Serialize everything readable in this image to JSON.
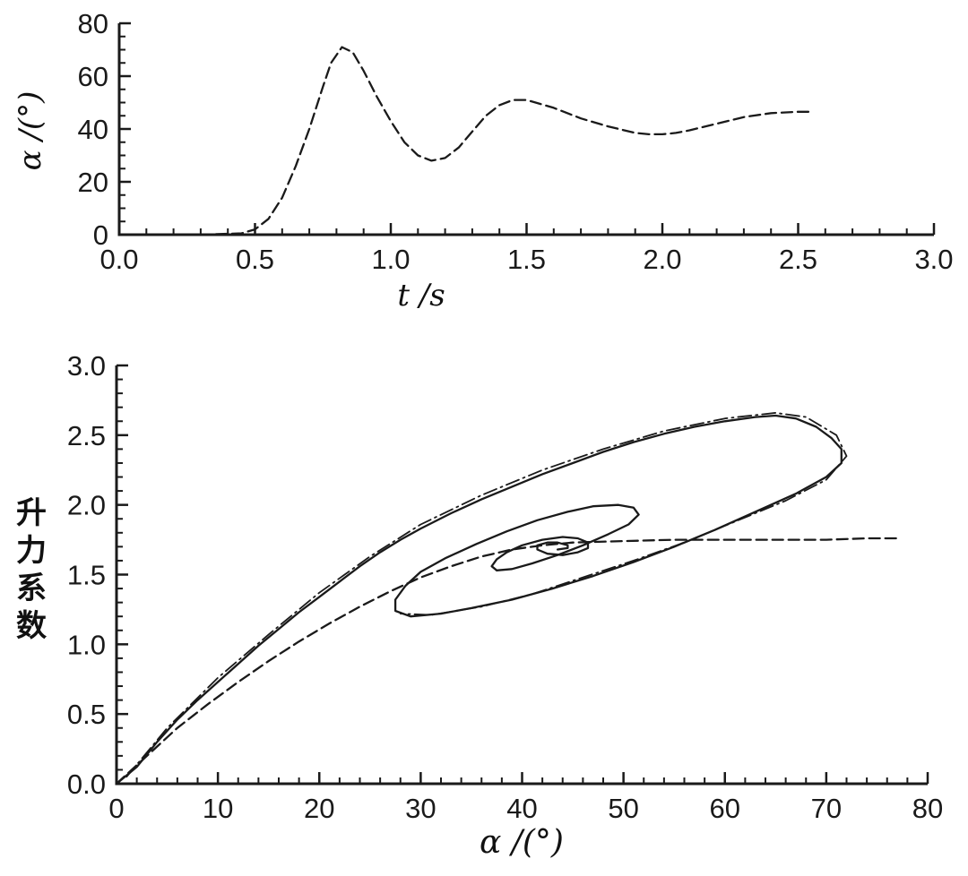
{
  "figure": {
    "background": "#ffffff",
    "ink_color": "#1a1a1a"
  },
  "chart_data": [
    {
      "id": "alpha-time-history",
      "type": "line",
      "title": "",
      "xlabel": "t /s",
      "ylabel": "α /(°)",
      "xlim": [
        0.0,
        3.0
      ],
      "ylim": [
        0,
        80
      ],
      "xtick_values": [
        0.0,
        0.5,
        1.0,
        1.5,
        2.0,
        2.5,
        3.0
      ],
      "xtick_labels": [
        "0.0",
        "0.5",
        "1.0",
        "1.5",
        "2.0",
        "2.5",
        "3.0"
      ],
      "ytick_values": [
        0,
        20,
        40,
        60,
        80
      ],
      "ytick_labels": [
        "0",
        "20",
        "40",
        "60",
        "80"
      ],
      "x_minor_step": 0.1,
      "y_minor_step": 5,
      "grid": false,
      "legend": "none",
      "line_color": "#1a1a1a",
      "series": [
        {
          "name": "angle-of-attack-response",
          "line_style": "dashed",
          "points": [
            [
              0,
              0
            ],
            [
              0.3,
              0
            ],
            [
              0.45,
              0.5
            ],
            [
              0.5,
              2
            ],
            [
              0.55,
              6
            ],
            [
              0.6,
              14
            ],
            [
              0.65,
              26
            ],
            [
              0.7,
              40
            ],
            [
              0.75,
              56
            ],
            [
              0.78,
              65
            ],
            [
              0.82,
              71
            ],
            [
              0.86,
              69
            ],
            [
              0.9,
              62
            ],
            [
              0.95,
              52
            ],
            [
              1.0,
              43
            ],
            [
              1.05,
              35
            ],
            [
              1.1,
              30
            ],
            [
              1.15,
              28
            ],
            [
              1.2,
              29
            ],
            [
              1.25,
              33
            ],
            [
              1.3,
              39
            ],
            [
              1.35,
              45
            ],
            [
              1.4,
              49
            ],
            [
              1.45,
              51
            ],
            [
              1.5,
              51
            ],
            [
              1.55,
              49.5
            ],
            [
              1.6,
              48
            ],
            [
              1.7,
              44
            ],
            [
              1.8,
              41
            ],
            [
              1.9,
              38.5
            ],
            [
              1.95,
              38
            ],
            [
              2.0,
              38
            ],
            [
              2.05,
              38.5
            ],
            [
              2.1,
              39.5
            ],
            [
              2.2,
              42
            ],
            [
              2.3,
              44.5
            ],
            [
              2.4,
              46
            ],
            [
              2.5,
              46.5
            ],
            [
              2.55,
              46.5
            ]
          ]
        }
      ]
    },
    {
      "id": "lift-vs-alpha",
      "type": "line",
      "title": "",
      "xlabel": "α /(°)",
      "ylabel": "升力系数",
      "xlim": [
        0,
        80
      ],
      "ylim": [
        0.0,
        3.0
      ],
      "xtick_values": [
        0,
        10,
        20,
        30,
        40,
        50,
        60,
        70,
        80
      ],
      "xtick_labels": [
        "0",
        "10",
        "20",
        "30",
        "40",
        "50",
        "60",
        "70",
        "80"
      ],
      "ytick_values": [
        0.0,
        0.5,
        1.0,
        1.5,
        2.0,
        2.5,
        3.0
      ],
      "ytick_labels": [
        "0.0",
        "0.5",
        "1.0",
        "1.5",
        "2.0",
        "2.5",
        "3.0"
      ],
      "x_minor_step": 2,
      "y_minor_step": 0.1,
      "grid": false,
      "legend": "none",
      "line_color": "#1a1a1a",
      "series": [
        {
          "name": "dynamic-lift-hysteresis-loop",
          "line_style": "solid",
          "points": [
            [
              0,
              0
            ],
            [
              2,
              0.12
            ],
            [
              4,
              0.3
            ],
            [
              6,
              0.46
            ],
            [
              8,
              0.6
            ],
            [
              10,
              0.73
            ],
            [
              12,
              0.86
            ],
            [
              14,
              0.99
            ],
            [
              16,
              1.11
            ],
            [
              18,
              1.23
            ],
            [
              20,
              1.34
            ],
            [
              22,
              1.45
            ],
            [
              24,
              1.56
            ],
            [
              26,
              1.66
            ],
            [
              28,
              1.75
            ],
            [
              30,
              1.83
            ],
            [
              33,
              1.94
            ],
            [
              36,
              2.04
            ],
            [
              39,
              2.13
            ],
            [
              42,
              2.22
            ],
            [
              45,
              2.3
            ],
            [
              48,
              2.38
            ],
            [
              51,
              2.45
            ],
            [
              54,
              2.51
            ],
            [
              57,
              2.56
            ],
            [
              60,
              2.6
            ],
            [
              63,
              2.63
            ],
            [
              65,
              2.64
            ],
            [
              67,
              2.62
            ],
            [
              69,
              2.56
            ],
            [
              70.5,
              2.48
            ],
            [
              71.5,
              2.4
            ],
            [
              71.5,
              2.3
            ],
            [
              70,
              2.2
            ],
            [
              67,
              2.08
            ],
            [
              63,
              1.95
            ],
            [
              59,
              1.82
            ],
            [
              55,
              1.7
            ],
            [
              51,
              1.59
            ],
            [
              47,
              1.49
            ],
            [
              43,
              1.4
            ],
            [
              39,
              1.32
            ],
            [
              35,
              1.26
            ],
            [
              32,
              1.22
            ],
            [
              29,
              1.2
            ],
            [
              27.5,
              1.24
            ],
            [
              27.5,
              1.32
            ],
            [
              28.5,
              1.42
            ],
            [
              30,
              1.52
            ],
            [
              32.5,
              1.62
            ],
            [
              35.5,
              1.72
            ],
            [
              38.5,
              1.81
            ],
            [
              41.5,
              1.89
            ],
            [
              44.5,
              1.95
            ],
            [
              47,
              1.99
            ],
            [
              49.5,
              2.0
            ],
            [
              51,
              1.98
            ],
            [
              51.5,
              1.93
            ],
            [
              50.5,
              1.86
            ],
            [
              48.5,
              1.79
            ],
            [
              46,
              1.71
            ],
            [
              43.5,
              1.64
            ],
            [
              41,
              1.58
            ],
            [
              39,
              1.54
            ],
            [
              37.5,
              1.53
            ],
            [
              37,
              1.56
            ],
            [
              37.5,
              1.61
            ],
            [
              38.5,
              1.66
            ],
            [
              40,
              1.71
            ],
            [
              42,
              1.75
            ],
            [
              44,
              1.77
            ],
            [
              45.5,
              1.76
            ],
            [
              46.5,
              1.73
            ],
            [
              46.5,
              1.69
            ],
            [
              45.5,
              1.66
            ],
            [
              44,
              1.64
            ],
            [
              42.5,
              1.65
            ],
            [
              41.5,
              1.68
            ],
            [
              41.5,
              1.71
            ],
            [
              42.5,
              1.73
            ],
            [
              43.5,
              1.73
            ],
            [
              44.5,
              1.71
            ],
            [
              44.5,
              1.69
            ],
            [
              43.5,
              1.68
            ]
          ]
        },
        {
          "name": "dynamic-lift-loop-overlay",
          "line_style": "dashdot",
          "points": [
            [
              1,
              0.05
            ],
            [
              5,
              0.4
            ],
            [
              10,
              0.76
            ],
            [
              15,
              1.07
            ],
            [
              20,
              1.37
            ],
            [
              25,
              1.63
            ],
            [
              30,
              1.86
            ],
            [
              36,
              2.07
            ],
            [
              42,
              2.25
            ],
            [
              48,
              2.4
            ],
            [
              54,
              2.53
            ],
            [
              60,
              2.62
            ],
            [
              65,
              2.66
            ],
            [
              68,
              2.63
            ],
            [
              71,
              2.5
            ],
            [
              72,
              2.35
            ],
            [
              70,
              2.18
            ],
            [
              66,
              2.03
            ],
            [
              61,
              1.88
            ],
            [
              56,
              1.73
            ],
            [
              51,
              1.6
            ],
            [
              46,
              1.48
            ],
            [
              41,
              1.36
            ],
            [
              36,
              1.27
            ],
            [
              31,
              1.21
            ],
            [
              28,
              1.22
            ]
          ]
        },
        {
          "name": "static-lift-curve",
          "line_style": "dashed",
          "points": [
            [
              0,
              0
            ],
            [
              3,
              0.2
            ],
            [
              6,
              0.4
            ],
            [
              9,
              0.57
            ],
            [
              12,
              0.73
            ],
            [
              15,
              0.88
            ],
            [
              18,
              1.02
            ],
            [
              21,
              1.15
            ],
            [
              24,
              1.27
            ],
            [
              27,
              1.38
            ],
            [
              30,
              1.48
            ],
            [
              33,
              1.56
            ],
            [
              36,
              1.63
            ],
            [
              39,
              1.68
            ],
            [
              42,
              1.71
            ],
            [
              45,
              1.73
            ],
            [
              50,
              1.74
            ],
            [
              55,
              1.75
            ],
            [
              60,
              1.75
            ],
            [
              65,
              1.75
            ],
            [
              70,
              1.75
            ],
            [
              74,
              1.76
            ],
            [
              77,
              1.76
            ]
          ]
        }
      ]
    }
  ]
}
